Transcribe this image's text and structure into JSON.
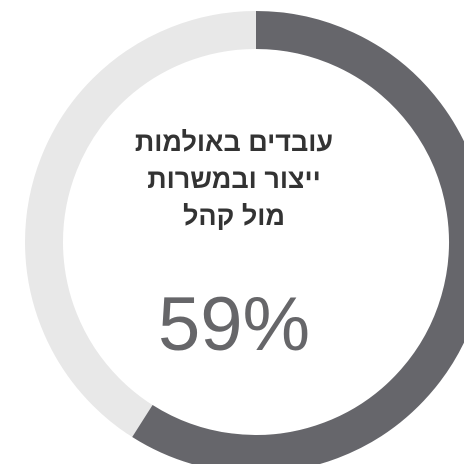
{
  "chart_data": {
    "type": "pie",
    "title_lines": [
      "עובדים באולמות",
      "ייצור ובמשרות",
      "מול קהל"
    ],
    "value_label": "59%",
    "values": [
      59,
      41
    ],
    "colors": {
      "value": "#66666b",
      "remainder": "#e8e8e8"
    }
  }
}
